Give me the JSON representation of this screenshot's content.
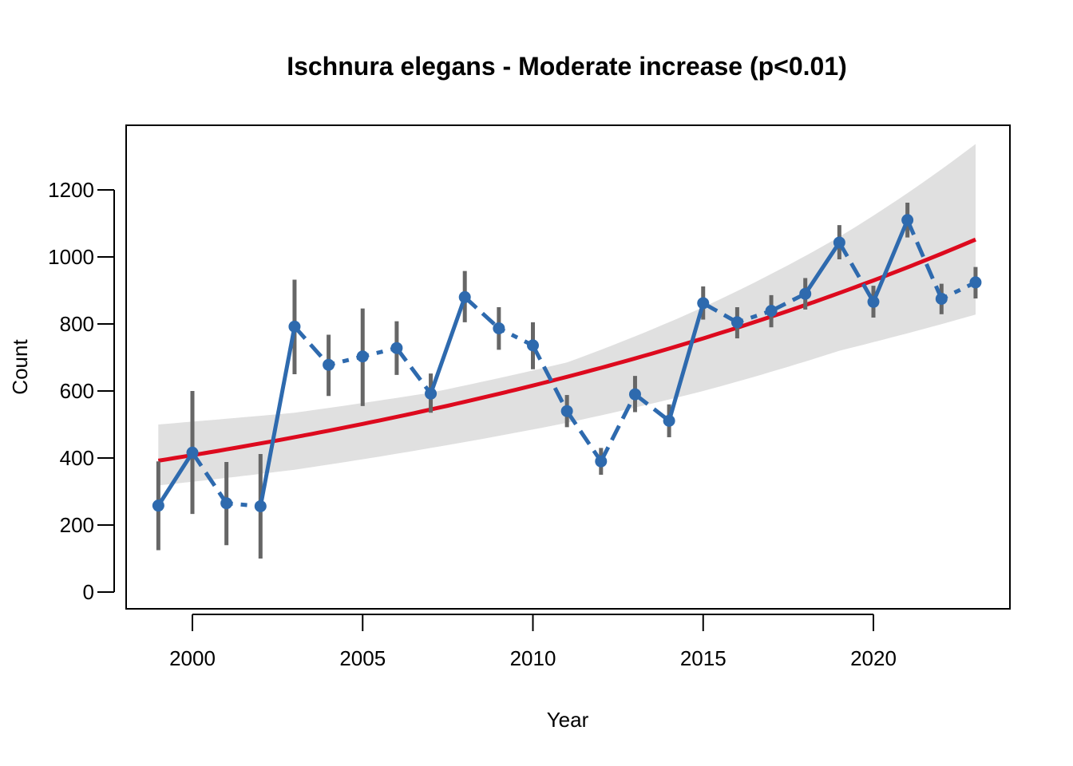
{
  "chart_data": {
    "type": "line",
    "title": "Ischnura elegans - Moderate increase (p<0.01)",
    "xlabel": "Year",
    "ylabel": "Count",
    "xlim": [
      1998,
      2024
    ],
    "ylim": [
      -50,
      1400
    ],
    "x_ticks": [
      2000,
      2005,
      2010,
      2015,
      2020
    ],
    "y_ticks": [
      0,
      200,
      400,
      600,
      800,
      1000,
      1200
    ],
    "grid": false,
    "legend": "none",
    "colors": {
      "observed": "#2E6AAE",
      "error_bar": "#666666",
      "trend": "#DD0A1E",
      "band": "#E0E0E0"
    },
    "observed": {
      "x": [
        1999,
        2000,
        2001,
        2002,
        2003,
        2004,
        2005,
        2006,
        2007,
        2008,
        2009,
        2010,
        2011,
        2012,
        2013,
        2014,
        2015,
        2016,
        2017,
        2018,
        2019,
        2020,
        2021,
        2022,
        2023
      ],
      "y": [
        258,
        416,
        265,
        256,
        792,
        678,
        703,
        728,
        592,
        880,
        787,
        736,
        540,
        390,
        590,
        511,
        862,
        805,
        839,
        890,
        1043,
        866,
        1110,
        875,
        924
      ],
      "lower": [
        125,
        233,
        140,
        100,
        650,
        585,
        555,
        648,
        535,
        805,
        723,
        665,
        492,
        350,
        537,
        462,
        813,
        757,
        790,
        843,
        993,
        819,
        1058,
        829,
        876
      ],
      "upper": [
        390,
        600,
        388,
        412,
        932,
        768,
        846,
        808,
        652,
        958,
        850,
        805,
        588,
        430,
        645,
        560,
        912,
        850,
        886,
        937,
        1095,
        914,
        1162,
        920,
        970
      ],
      "segment_styles": [
        "solid",
        "dashed",
        "dotted",
        "solid",
        "dashed",
        "dotted",
        "dotted",
        "dashed",
        "solid",
        "dashed",
        "dotted",
        "dashed",
        "dashed",
        "dashed",
        "dashed",
        "solid",
        "dashed",
        "dotted",
        "dashed",
        "solid",
        "dashed",
        "solid",
        "dashed",
        "dotted"
      ]
    },
    "trend": {
      "start": {
        "x": 1999,
        "y": 392
      },
      "end": {
        "x": 2023,
        "y": 1052
      }
    },
    "band": {
      "x": [
        1999,
        2003,
        2007,
        2011,
        2015,
        2019,
        2023
      ],
      "lower": [
        318,
        365,
        430,
        505,
        600,
        720,
        828
      ],
      "upper": [
        500,
        535,
        595,
        685,
        850,
        1060,
        1337
      ]
    }
  }
}
